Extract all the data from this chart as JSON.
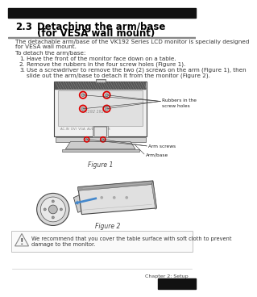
{
  "title_num": "2.3",
  "title_text1": "Detaching the arm/base",
  "title_text2": "(for VESA wall mount)",
  "body_text1a": "The detachable arm/base of the VK192 Series LCD monitor is specially designed",
  "body_text1b": "for VESA wall mount.",
  "body_text2": "To detach the arm/base:",
  "step1": "Have the front of the monitor face down on a table.",
  "step2": "Remove the rubbers in the four screw holes (Figure 1).",
  "step3a": "Use a screwdriver to remove the two (2) screws on the arm (Figure 1), then",
  "step3b": "slide out the arm/base to detach it from the monitor (Figure 2).",
  "fig1_caption": "Figure 1",
  "fig2_caption": "Figure 2",
  "label_rubbers": "Rubbers in the\nscrew holes",
  "label_arm_screws": "Arm screws",
  "label_arm_base": "Arm/base",
  "warning_text1": "We recommend that you cover the table surface with soft cloth to prevent",
  "warning_text2": "damage to the monitor.",
  "footer_text": "Chapter 2: Setup",
  "bg_color": "#ffffff",
  "header_bg": "#111111",
  "footer_bg": "#111111",
  "title_color": "#000000",
  "body_color": "#333333",
  "warning_border": "#bbbbbb",
  "red_circle": "#dd0000",
  "blue_arrow": "#4488cc"
}
